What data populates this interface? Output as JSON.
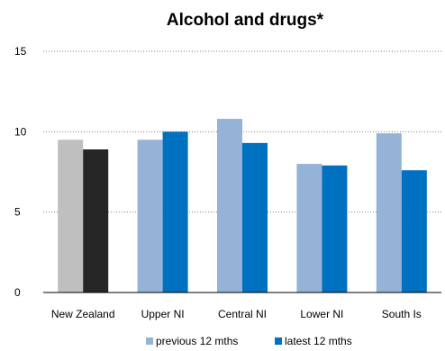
{
  "chart_data": {
    "type": "bar",
    "title": "Alcohol and drugs*",
    "xlabel": "",
    "ylabel": "",
    "ylim": [
      0,
      15
    ],
    "yticks": [
      "0",
      "5",
      "10",
      "15"
    ],
    "grid": true,
    "legend_position": "bottom",
    "categories": [
      "New Zealand",
      "Upper NI",
      "Central NI",
      "Lower NI",
      "South Is"
    ],
    "series": [
      {
        "name": "previous 12 mths",
        "values": [
          9.5,
          9.5,
          10.8,
          8.0,
          9.9
        ]
      },
      {
        "name": "latest 12 mths",
        "values": [
          8.9,
          10.0,
          9.3,
          7.9,
          7.6
        ]
      }
    ],
    "colors": {
      "previous": "#95b3d7",
      "latest": "#0070c0",
      "nz_previous": "#bfbfbf",
      "nz_latest": "#262626",
      "grid": "#808080",
      "axis": "#000000"
    }
  }
}
